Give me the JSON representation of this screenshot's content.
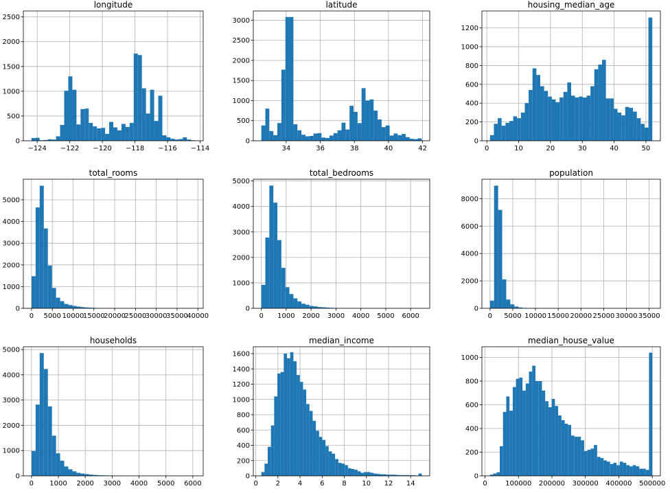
{
  "chart_data": [
    {
      "type": "bar",
      "title": "longitude",
      "bin_range": [
        -124.35,
        -114.31
      ],
      "values": [
        55,
        60,
        10,
        15,
        30,
        25,
        90,
        320,
        1010,
        1300,
        1030,
        330,
        640,
        650,
        360,
        290,
        250,
        260,
        140,
        380,
        270,
        210,
        340,
        280,
        360,
        1760,
        1730,
        1060,
        550,
        1030,
        400,
        910,
        110,
        70,
        40,
        25,
        35,
        70,
        25,
        10
      ],
      "xticks": [
        -124,
        -122,
        -120,
        -118,
        -116,
        -114
      ],
      "xtick_labels": [
        "−124",
        "−122",
        "−120",
        "−118",
        "−116",
        "−114"
      ],
      "xlim": [
        -124.85,
        -113.81
      ],
      "yticks": [
        0,
        500,
        1000,
        1500,
        2000,
        2500
      ],
      "ylim": [
        0,
        2620
      ]
    },
    {
      "type": "bar",
      "title": "latitude",
      "bin_range": [
        32.54,
        41.95
      ],
      "values": [
        380,
        800,
        240,
        140,
        440,
        1770,
        3080,
        3080,
        410,
        260,
        150,
        110,
        120,
        180,
        190,
        80,
        70,
        130,
        190,
        260,
        450,
        280,
        870,
        720,
        440,
        1310,
        1000,
        1030,
        750,
        530,
        340,
        380,
        130,
        180,
        140,
        170,
        90,
        50,
        40,
        60
      ],
      "xticks": [
        34,
        36,
        38,
        40,
        42
      ],
      "xtick_labels": [
        "34",
        "36",
        "38",
        "40",
        "42"
      ],
      "xlim": [
        32.07,
        42.42
      ],
      "yticks": [
        0,
        500,
        1000,
        1500,
        2000,
        2500,
        3000
      ],
      "ylim": [
        0,
        3230
      ]
    },
    {
      "type": "bar",
      "title": "housing_median_age",
      "bin_range": [
        1,
        52
      ],
      "values": [
        60,
        180,
        240,
        160,
        190,
        210,
        260,
        240,
        300,
        400,
        540,
        770,
        700,
        580,
        530,
        470,
        440,
        410,
        460,
        520,
        620,
        480,
        460,
        470,
        460,
        480,
        580,
        760,
        810,
        860,
        450,
        450,
        340,
        300,
        270,
        360,
        350,
        310,
        240,
        180,
        140,
        1310
      ],
      "xticks": [
        0,
        10,
        20,
        30,
        40,
        50
      ],
      "xtick_labels": [
        "0",
        "10",
        "20",
        "30",
        "40",
        "50"
      ],
      "xlim": [
        -1.55,
        54.55
      ],
      "yticks": [
        0,
        200,
        400,
        600,
        800,
        1000,
        1200
      ],
      "ylim": [
        0,
        1380
      ]
    },
    {
      "type": "bar",
      "title": "total_rooms",
      "bin_range": [
        2,
        39320
      ],
      "values": [
        1480,
        4650,
        5650,
        3680,
        1970,
        940,
        490,
        330,
        200,
        150,
        110,
        80,
        55,
        40,
        30,
        20,
        15,
        10,
        8,
        6,
        5,
        4,
        3,
        3,
        2,
        2,
        2,
        1,
        1,
        1,
        1,
        1,
        1,
        1,
        1,
        1,
        1,
        1,
        1,
        1
      ],
      "xticks": [
        0,
        5000,
        10000,
        15000,
        20000,
        25000,
        30000,
        35000,
        40000
      ],
      "xtick_labels": [
        "0",
        "5000",
        "10000",
        "15000",
        "20000",
        "25000",
        "30000",
        "35000",
        "40000"
      ],
      "xlim": [
        -1964,
        41286
      ],
      "yticks": [
        0,
        1000,
        2000,
        3000,
        4000,
        5000
      ],
      "ylim": [
        0,
        5950
      ]
    },
    {
      "type": "bar",
      "title": "total_bedrooms",
      "bin_range": [
        1,
        6445
      ],
      "values": [
        920,
        2780,
        4820,
        4150,
        2680,
        1590,
        830,
        560,
        390,
        270,
        180,
        140,
        95,
        75,
        50,
        40,
        30,
        20,
        15,
        10,
        8,
        6,
        5,
        4,
        3,
        3,
        2,
        2,
        1,
        1,
        1,
        1,
        1,
        1,
        1,
        1,
        1,
        1,
        1,
        1
      ],
      "xticks": [
        0,
        1000,
        2000,
        3000,
        4000,
        5000,
        6000
      ],
      "xtick_labels": [
        "0",
        "1000",
        "2000",
        "3000",
        "4000",
        "5000",
        "6000"
      ],
      "xlim": [
        -321,
        6767
      ],
      "yticks": [
        0,
        1000,
        2000,
        3000,
        4000,
        5000
      ],
      "ylim": [
        0,
        5070
      ]
    },
    {
      "type": "bar",
      "title": "population",
      "bin_range": [
        3,
        35682
      ],
      "values": [
        560,
        8950,
        7180,
        2110,
        640,
        290,
        130,
        60,
        30,
        20,
        12,
        8,
        6,
        5,
        4,
        3,
        3,
        2,
        2,
        1,
        1,
        1,
        1,
        1,
        1,
        1,
        1,
        1,
        1,
        1,
        1,
        1,
        1,
        1,
        1,
        1,
        1,
        1,
        1,
        1
      ],
      "xticks": [
        0,
        5000,
        10000,
        15000,
        20000,
        25000,
        30000,
        35000
      ],
      "xtick_labels": [
        "0",
        "5000",
        "10000",
        "15000",
        "20000",
        "25000",
        "30000",
        "35000"
      ],
      "xlim": [
        -1781,
        37466
      ],
      "yticks": [
        0,
        2000,
        4000,
        6000,
        8000
      ],
      "ylim": [
        0,
        9420
      ]
    },
    {
      "type": "bar",
      "title": "households",
      "bin_range": [
        1,
        6082
      ],
      "values": [
        980,
        2820,
        4860,
        4230,
        2750,
        1590,
        890,
        600,
        370,
        260,
        180,
        120,
        90,
        70,
        50,
        35,
        25,
        20,
        15,
        12,
        10,
        8,
        6,
        5,
        4,
        3,
        3,
        2,
        2,
        1,
        1,
        1,
        1,
        1,
        1,
        1,
        1,
        1,
        1,
        1
      ],
      "xticks": [
        0,
        1000,
        2000,
        3000,
        4000,
        5000,
        6000
      ],
      "xtick_labels": [
        "0",
        "1000",
        "2000",
        "3000",
        "4000",
        "5000",
        "6000"
      ],
      "xlim": [
        -303,
        6386
      ],
      "yticks": [
        0,
        1000,
        2000,
        3000,
        4000,
        5000
      ],
      "ylim": [
        0,
        5110
      ]
    },
    {
      "type": "bar",
      "title": "median_income",
      "bin_range": [
        0.4999,
        15.0001
      ],
      "values": [
        50,
        160,
        380,
        660,
        1040,
        1340,
        1360,
        1600,
        1540,
        1620,
        1500,
        1320,
        1230,
        1130,
        940,
        850,
        720,
        590,
        510,
        470,
        390,
        320,
        290,
        220,
        170,
        160,
        140,
        100,
        90,
        80,
        60,
        40,
        50,
        50,
        40,
        30,
        25,
        20,
        20,
        15,
        15,
        15,
        12,
        10,
        10,
        10,
        8,
        8,
        5,
        30
      ],
      "xticks": [
        0,
        2,
        4,
        6,
        8,
        10,
        12,
        14
      ],
      "xtick_labels": [
        "0",
        "2",
        "4",
        "6",
        "8",
        "10",
        "12",
        "14"
      ],
      "xlim": [
        -0.225,
        15.725
      ],
      "yticks": [
        0,
        200,
        400,
        600,
        800,
        1000,
        1200,
        1400,
        1600
      ],
      "ylim": [
        0,
        1690
      ]
    },
    {
      "type": "bar",
      "title": "median_house_value",
      "bin_range": [
        14999,
        500001
      ],
      "values": [
        10,
        20,
        30,
        250,
        540,
        670,
        550,
        750,
        820,
        830,
        720,
        780,
        880,
        930,
        800,
        800,
        720,
        630,
        580,
        650,
        590,
        510,
        470,
        440,
        430,
        340,
        330,
        330,
        300,
        210,
        220,
        230,
        260,
        160,
        150,
        130,
        120,
        100,
        110,
        90,
        120,
        110,
        90,
        80,
        90,
        80,
        60,
        60,
        50,
        1040
      ],
      "xticks": [
        0,
        100000,
        200000,
        300000,
        400000,
        500000
      ],
      "xtick_labels": [
        "0",
        "100000",
        "200000",
        "300000",
        "400000",
        "500000"
      ],
      "xlim": [
        -9251,
        524251
      ],
      "yticks": [
        0,
        200,
        400,
        600,
        800,
        1000
      ],
      "ylim": [
        0,
        1090
      ]
    }
  ],
  "colors": {
    "bar": "#1f77b4",
    "grid": "#b0b0b0",
    "axis": "#000000",
    "background": "#ffffff"
  }
}
